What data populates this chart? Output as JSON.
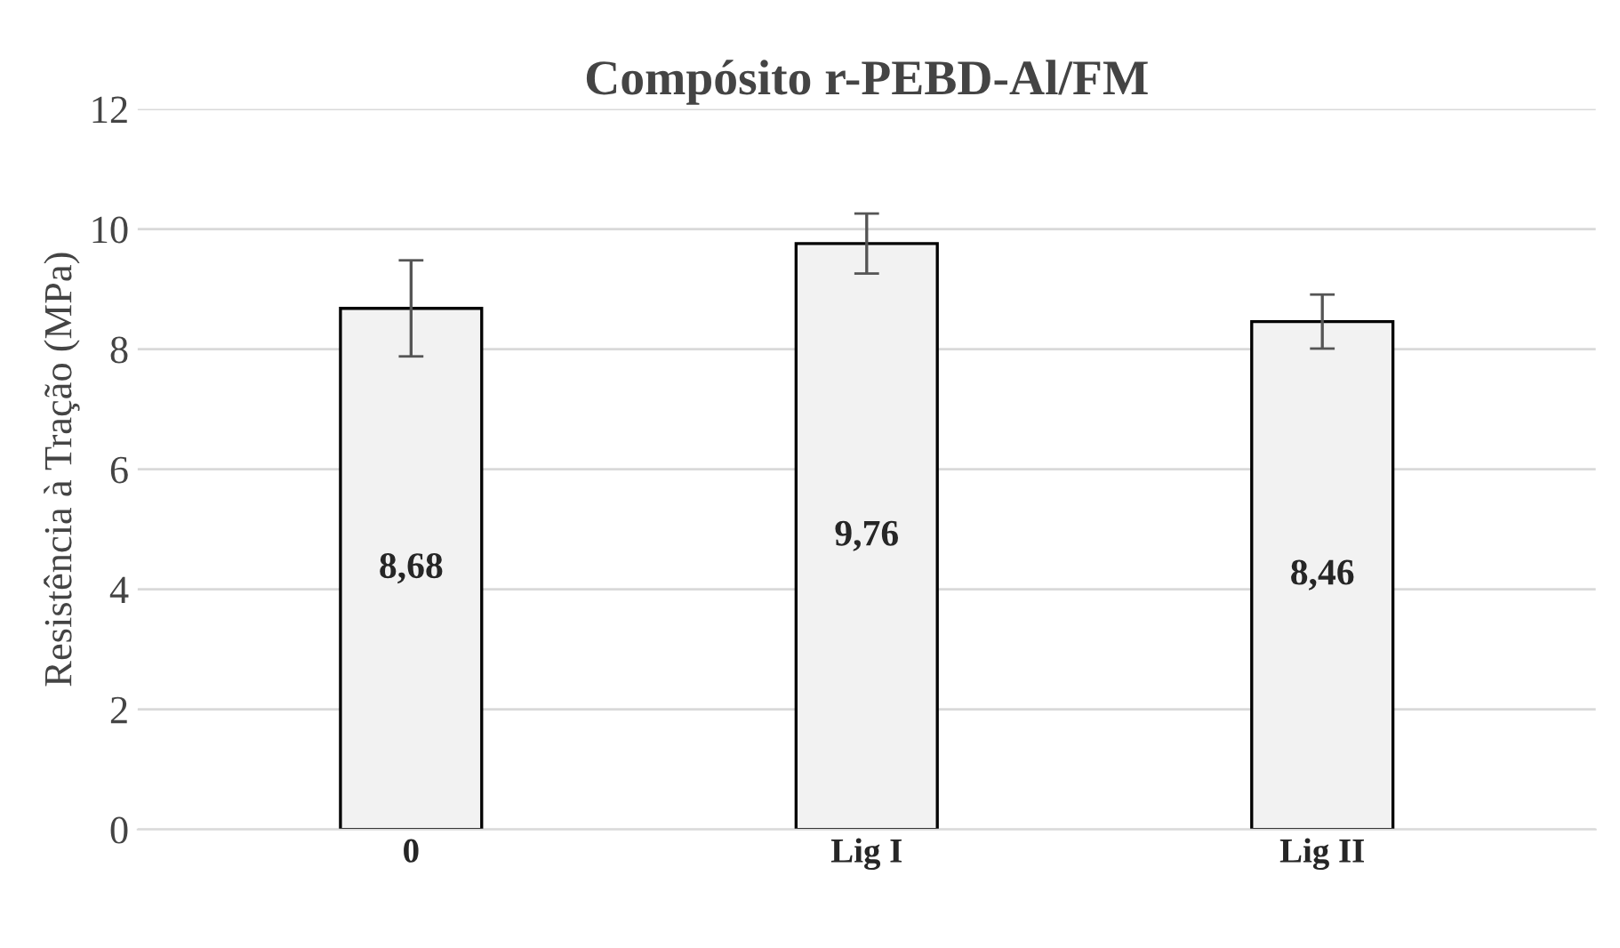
{
  "chart_data": {
    "type": "bar",
    "title": "Compósito r-PEBD-Al/FM",
    "ylabel": "Resistência à Tração (MPa)",
    "categories": [
      "0",
      "Lig I",
      "Lig II"
    ],
    "values": [
      8.68,
      9.76,
      8.46
    ],
    "value_labels": [
      "8,68",
      "9,76",
      "8,46"
    ],
    "errors": [
      0.8,
      0.5,
      0.45
    ],
    "color": "#f2f2f2",
    "ylim": [
      0,
      12
    ],
    "yticks": [
      0,
      2,
      4,
      6,
      8,
      10,
      12
    ],
    "grid": "y"
  }
}
